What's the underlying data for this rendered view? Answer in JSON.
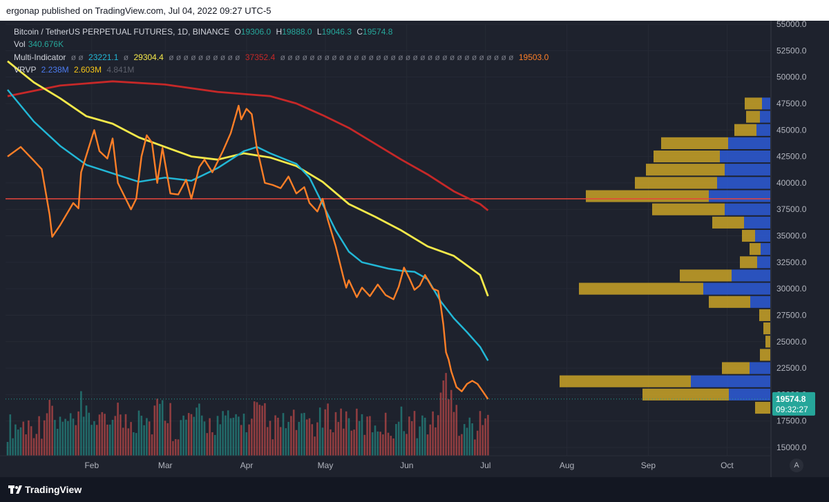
{
  "header": {
    "publisher_line": "ergonap published on TradingView.com, Jul 04, 2022 09:27 UTC-5"
  },
  "footer": {
    "brand": "TradingView"
  },
  "legend": {
    "symbol_line": "Bitcoin / TetherUS PERPETUAL FUTURES, 1D, BINANCE",
    "ohlc": {
      "o_label": "O",
      "o": "19306.0",
      "h_label": "H",
      "h": "19888.0",
      "l_label": "L",
      "l": "19046.3",
      "c_label": "C",
      "c": "19574.8"
    },
    "vol_label": "Vol",
    "vol_value": "340.676K",
    "multi_label": "Multi-Indicator",
    "multi_v1": "23221.1",
    "multi_v2": "29304.4",
    "multi_v3": "37352.4",
    "multi_v4": "19503.0",
    "vrvp_label": "VRVP",
    "vrvp_v1": "2.238M",
    "vrvp_v2": "2.603M",
    "vrvp_v3": "4.841M"
  },
  "price_badge": {
    "price": "19574.8",
    "countdown": "09:32:27"
  },
  "auto_button": "A",
  "colors": {
    "background": "#1e222d",
    "up": "#26a69a",
    "down": "#ef5350",
    "price_line": "#ff7f27",
    "ma_fast": "#22b7d6",
    "ma_mid": "#f5e94a",
    "ma_slow": "#c62828",
    "hline": "#e8453c",
    "vp_up": "#c9a227",
    "vp_down": "#2d5bd7"
  },
  "chart_data": {
    "type": "line",
    "title": "Bitcoin / TetherUS PERPETUAL FUTURES, 1D, BINANCE",
    "xlabel": "",
    "ylabel": "",
    "ylim": [
      15000,
      55000
    ],
    "y_ticks": [
      "55000.0",
      "52500.0",
      "50000.0",
      "47500.0",
      "45000.0",
      "42500.0",
      "40000.0",
      "37500.0",
      "35000.0",
      "32500.0",
      "30000.0",
      "27500.0",
      "25000.0",
      "22500.0",
      "20000.0",
      "17500.0",
      "15000.0"
    ],
    "x_ticks": [
      {
        "label": "Feb",
        "day": 31
      },
      {
        "label": "Mar",
        "day": 59
      },
      {
        "label": "Apr",
        "day": 90
      },
      {
        "label": "May",
        "day": 120
      },
      {
        "label": "Jun",
        "day": 151
      },
      {
        "label": "Jul",
        "day": 181
      },
      {
        "label": "Aug",
        "day": 212
      },
      {
        "label": "Sep",
        "day": 243
      },
      {
        "label": "Oct",
        "day": 273
      }
    ],
    "series": [
      {
        "key": "price",
        "points": [
          [
            0,
            42500
          ],
          [
            5,
            43400
          ],
          [
            10,
            42100
          ],
          [
            13,
            41300
          ],
          [
            16,
            37000
          ],
          [
            17,
            34900
          ],
          [
            20,
            36000
          ],
          [
            25,
            38100
          ],
          [
            27,
            37600
          ],
          [
            28,
            41000
          ],
          [
            33,
            45000
          ],
          [
            35,
            43000
          ],
          [
            38,
            42300
          ],
          [
            40,
            44200
          ],
          [
            42,
            40000
          ],
          [
            45,
            38500
          ],
          [
            47,
            37500
          ],
          [
            49,
            38500
          ],
          [
            51,
            42500
          ],
          [
            53,
            44500
          ],
          [
            55,
            43800
          ],
          [
            57,
            40000
          ],
          [
            59,
            43300
          ],
          [
            62,
            39000
          ],
          [
            65,
            38900
          ],
          [
            68,
            40300
          ],
          [
            70,
            38500
          ],
          [
            73,
            41500
          ],
          [
            75,
            42200
          ],
          [
            78,
            41000
          ],
          [
            82,
            43000
          ],
          [
            85,
            44700
          ],
          [
            88,
            47300
          ],
          [
            89,
            46000
          ],
          [
            91,
            47000
          ],
          [
            93,
            46500
          ],
          [
            95,
            43200
          ],
          [
            96,
            42200
          ],
          [
            98,
            40000
          ],
          [
            101,
            39800
          ],
          [
            104,
            39500
          ],
          [
            107,
            40600
          ],
          [
            110,
            39000
          ],
          [
            113,
            39600
          ],
          [
            115,
            38100
          ],
          [
            118,
            37300
          ],
          [
            120,
            38500
          ],
          [
            122,
            36500
          ],
          [
            125,
            34000
          ],
          [
            128,
            31000
          ],
          [
            129,
            30100
          ],
          [
            130,
            30800
          ],
          [
            133,
            29200
          ],
          [
            135,
            30100
          ],
          [
            138,
            29300
          ],
          [
            141,
            30400
          ],
          [
            144,
            29400
          ],
          [
            147,
            29000
          ],
          [
            149,
            30200
          ],
          [
            151,
            32000
          ],
          [
            153,
            31000
          ],
          [
            155,
            29900
          ],
          [
            157,
            30300
          ],
          [
            159,
            31300
          ],
          [
            162,
            30000
          ],
          [
            164,
            29800
          ],
          [
            165,
            28400
          ],
          [
            166,
            26600
          ],
          [
            167,
            24000
          ],
          [
            168,
            23300
          ],
          [
            169,
            22200
          ],
          [
            171,
            20700
          ],
          [
            173,
            20300
          ],
          [
            175,
            21000
          ],
          [
            177,
            21300
          ],
          [
            179,
            21000
          ],
          [
            181,
            20300
          ],
          [
            183,
            19574
          ]
        ]
      },
      {
        "key": "ma_fast",
        "points": [
          [
            0,
            48800
          ],
          [
            10,
            45800
          ],
          [
            20,
            43500
          ],
          [
            30,
            41700
          ],
          [
            40,
            40900
          ],
          [
            50,
            40100
          ],
          [
            60,
            40500
          ],
          [
            70,
            40200
          ],
          [
            80,
            41400
          ],
          [
            90,
            43000
          ],
          [
            95,
            43400
          ],
          [
            100,
            42800
          ],
          [
            110,
            41800
          ],
          [
            115,
            40500
          ],
          [
            120,
            38000
          ],
          [
            125,
            35500
          ],
          [
            130,
            33500
          ],
          [
            135,
            32500
          ],
          [
            140,
            32200
          ],
          [
            145,
            31900
          ],
          [
            150,
            31700
          ],
          [
            155,
            31600
          ],
          [
            160,
            30900
          ],
          [
            165,
            28800
          ],
          [
            170,
            27200
          ],
          [
            175,
            25900
          ],
          [
            180,
            24500
          ],
          [
            183,
            23200
          ]
        ]
      },
      {
        "key": "ma_mid",
        "points": [
          [
            0,
            51500
          ],
          [
            10,
            49500
          ],
          [
            20,
            48000
          ],
          [
            30,
            46300
          ],
          [
            40,
            45600
          ],
          [
            50,
            44300
          ],
          [
            60,
            43400
          ],
          [
            70,
            42500
          ],
          [
            80,
            42200
          ],
          [
            90,
            42800
          ],
          [
            100,
            42400
          ],
          [
            110,
            41600
          ],
          [
            120,
            40100
          ],
          [
            130,
            38000
          ],
          [
            140,
            36800
          ],
          [
            150,
            35500
          ],
          [
            160,
            34000
          ],
          [
            170,
            33100
          ],
          [
            180,
            31300
          ],
          [
            183,
            29300
          ]
        ]
      },
      {
        "key": "ma_slow",
        "points": [
          [
            0,
            48200
          ],
          [
            20,
            49200
          ],
          [
            40,
            49600
          ],
          [
            60,
            49300
          ],
          [
            80,
            48600
          ],
          [
            100,
            48200
          ],
          [
            110,
            47500
          ],
          [
            120,
            46400
          ],
          [
            130,
            45200
          ],
          [
            140,
            43700
          ],
          [
            150,
            42200
          ],
          [
            160,
            40800
          ],
          [
            170,
            39200
          ],
          [
            180,
            38000
          ],
          [
            183,
            37400
          ]
        ]
      }
    ],
    "horizontal_line": 38500,
    "volume_profile": [
      {
        "price": 47500,
        "up": 25,
        "down": 12
      },
      {
        "price": 46250,
        "up": 20,
        "down": 15
      },
      {
        "price": 45000,
        "up": 32,
        "down": 20
      },
      {
        "price": 43750,
        "up": 97,
        "down": 61
      },
      {
        "price": 42500,
        "up": 96,
        "down": 73
      },
      {
        "price": 41250,
        "up": 114,
        "down": 66
      },
      {
        "price": 40000,
        "up": 119,
        "down": 77
      },
      {
        "price": 38750,
        "up": 178,
        "down": 89
      },
      {
        "price": 37500,
        "up": 105,
        "down": 66
      },
      {
        "price": 36250,
        "up": 46,
        "down": 38
      },
      {
        "price": 35000,
        "up": 19,
        "down": 22
      },
      {
        "price": 33750,
        "up": 16,
        "down": 14
      },
      {
        "price": 32500,
        "up": 25,
        "down": 19
      },
      {
        "price": 31250,
        "up": 75,
        "down": 56
      },
      {
        "price": 30000,
        "up": 180,
        "down": 97
      },
      {
        "price": 28750,
        "up": 60,
        "down": 29
      },
      {
        "price": 27500,
        "up": 16,
        "down": 0
      },
      {
        "price": 26250,
        "up": 10,
        "down": 0
      },
      {
        "price": 25000,
        "up": 7,
        "down": 0
      },
      {
        "price": 23750,
        "up": 15,
        "down": 0
      },
      {
        "price": 22500,
        "up": 40,
        "down": 30
      },
      {
        "price": 21250,
        "up": 190,
        "down": 115
      },
      {
        "price": 20000,
        "up": 125,
        "down": 60
      },
      {
        "price": 18750,
        "up": 22,
        "down": 0
      }
    ]
  }
}
